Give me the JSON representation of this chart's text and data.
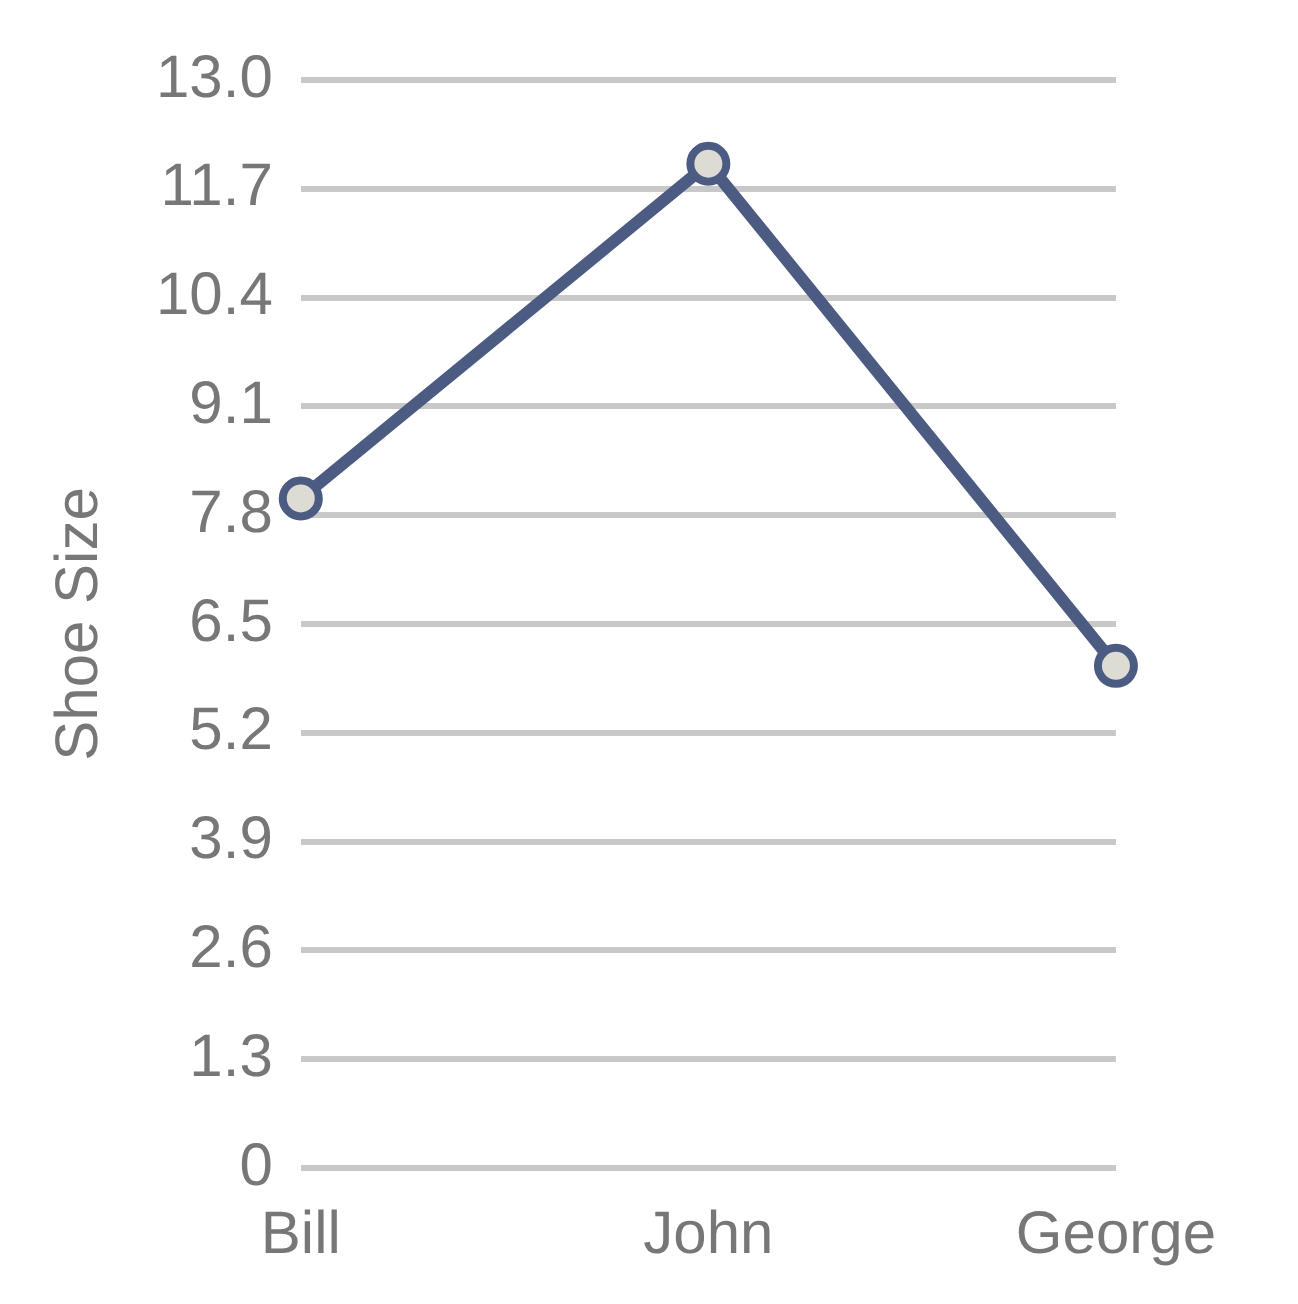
{
  "chart_data": {
    "type": "line",
    "ylabel": "Shoe Size",
    "categories": [
      "Bill",
      "John",
      "George"
    ],
    "series": [
      {
        "color": "#4c5b82",
        "values": [
          8,
          12,
          6
        ]
      }
    ],
    "ylim": [
      0,
      13
    ],
    "yticks": [
      0,
      1.3,
      2.6,
      3.9,
      5.2,
      6.5,
      7.8,
      9.1,
      10.4,
      11.7,
      {
        "value": 13,
        "label": "13.0"
      }
    ],
    "grid": "y",
    "marker": "circle",
    "line_style": "solid"
  }
}
